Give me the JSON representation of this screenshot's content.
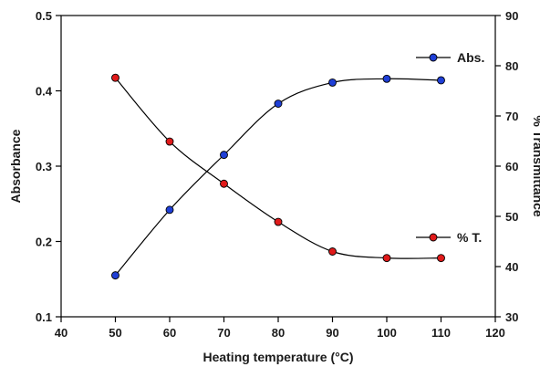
{
  "chart_data": {
    "type": "line",
    "xlabel": "Heating temperature (°C)",
    "ylabel": "Absorbance",
    "y2label": "% Transmittance",
    "xlim": [
      40,
      120
    ],
    "ylim": [
      0.1,
      0.5
    ],
    "y2lim": [
      30,
      90
    ],
    "xticks": [
      40,
      50,
      60,
      70,
      80,
      90,
      100,
      110,
      120
    ],
    "yticks": [
      0.1,
      0.2,
      0.3,
      0.4,
      0.5
    ],
    "y2ticks": [
      30,
      40,
      50,
      60,
      70,
      80,
      90
    ],
    "grid": false,
    "series": [
      {
        "name": "Abs.",
        "axis": "left",
        "color": "#1f3fd6",
        "x": [
          50,
          60,
          70,
          80,
          90,
          100,
          110
        ],
        "values": [
          0.155,
          0.242,
          0.315,
          0.383,
          0.411,
          0.416,
          0.414
        ]
      },
      {
        "name": "% T.",
        "axis": "right",
        "color": "#e01a1a",
        "x": [
          50,
          60,
          70,
          80,
          90,
          100,
          110
        ],
        "values": [
          77.6,
          64.9,
          56.5,
          48.9,
          43.0,
          41.7,
          41.7
        ]
      }
    ]
  }
}
